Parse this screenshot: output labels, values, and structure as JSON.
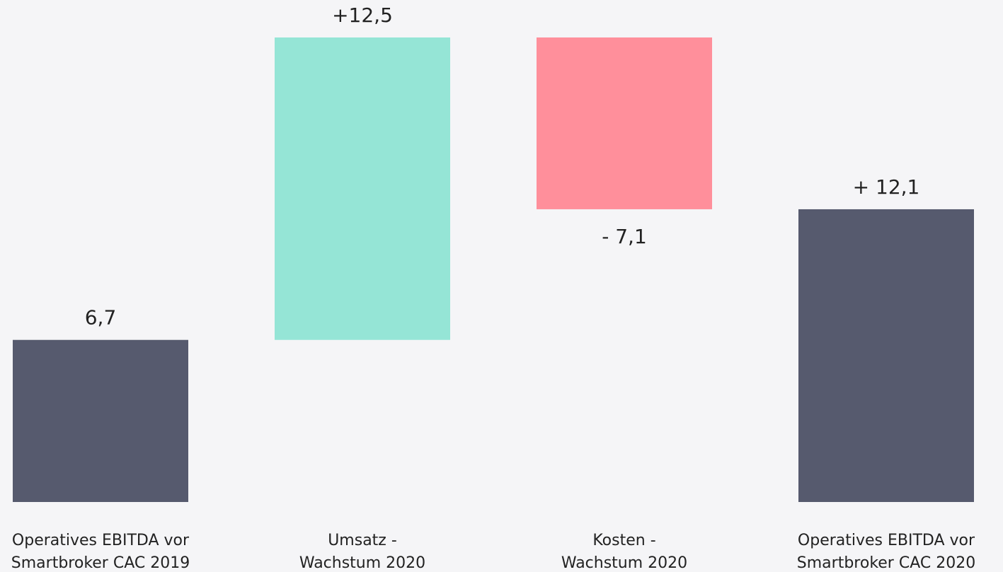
{
  "chart_data": {
    "type": "waterfall",
    "categories": [
      [
        "Operatives EBITDA vor",
        "Smartbroker CAC 2019"
      ],
      [
        "Umsatz -",
        "Wachstum 2020"
      ],
      [
        "Kosten -",
        "Wachstum 2020"
      ],
      [
        "Operatives EBITDA vor",
        "Smartbroker CAC 2020"
      ]
    ],
    "values": [
      6.7,
      12.5,
      -7.1,
      12.1
    ],
    "value_labels": [
      "6,7",
      "+12,5",
      "- 7,1",
      "+ 12,1"
    ],
    "measure": [
      "absolute",
      "relative",
      "relative",
      "total"
    ],
    "colors": [
      "#565a6e",
      "#95e5d6",
      "#ff8f9b",
      "#565a6e"
    ]
  }
}
